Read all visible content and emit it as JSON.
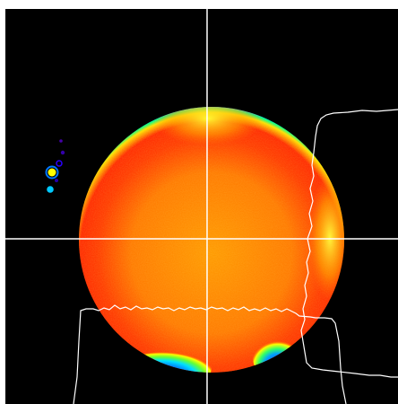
{
  "image": {
    "background_color": "#000000",
    "frame_color": "#ffffff",
    "crosshair_color": "#ffffff",
    "profile_color": "#ffffff",
    "colormap": [
      "#1a00ff",
      "#00c8ff",
      "#00ff66",
      "#ffff00",
      "#ff9900",
      "#ff2a00"
    ]
  }
}
